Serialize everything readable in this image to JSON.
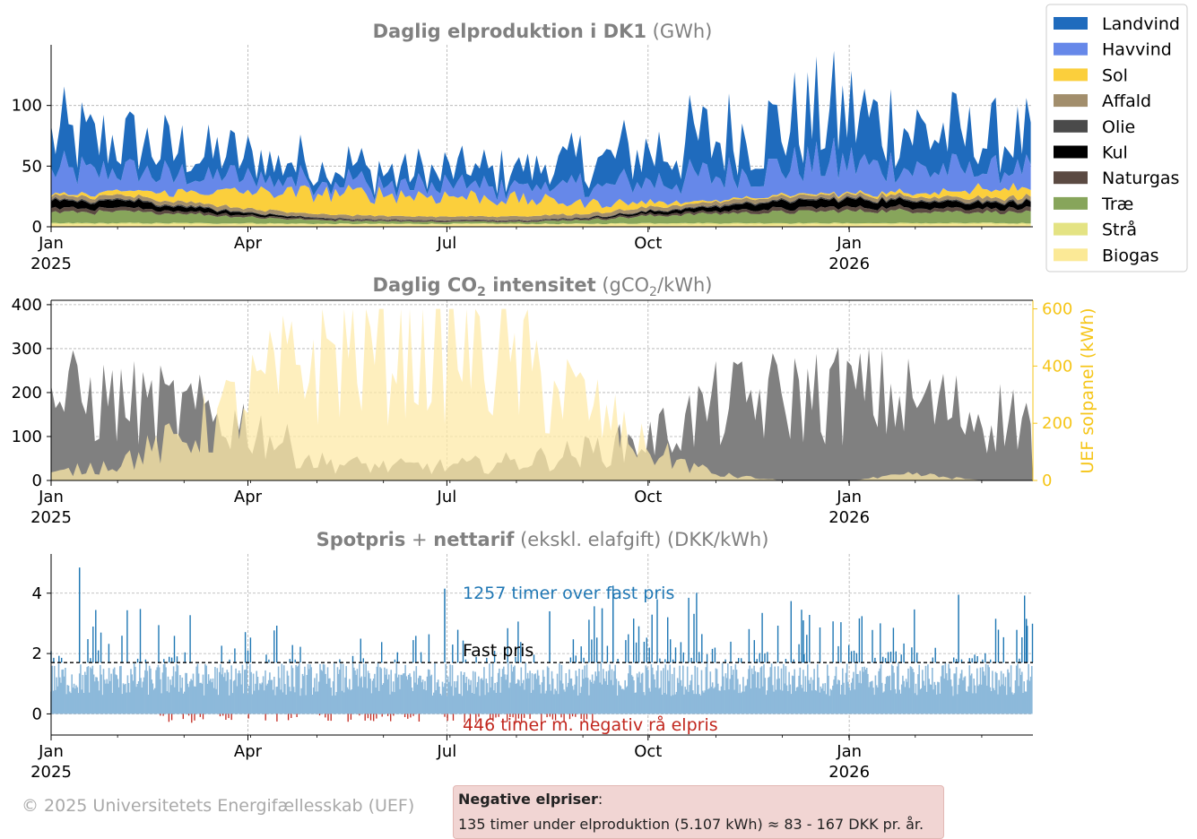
{
  "chart_data": [
    {
      "type": "area",
      "title_bold": "Daglig elproduktion i DK1",
      "title_unit": "(GWh)",
      "xlabel": "",
      "ylabel": "",
      "ylim": [
        0,
        150
      ],
      "yticks": [
        0,
        50,
        100
      ],
      "xticks": [
        {
          "label": "Jan",
          "sub": "2025",
          "day": 0
        },
        {
          "label": "Apr",
          "sub": "",
          "day": 90
        },
        {
          "label": "Jul",
          "sub": "",
          "day": 181
        },
        {
          "label": "Oct",
          "sub": "",
          "day": 273
        },
        {
          "label": "Jan",
          "sub": "2026",
          "day": 365
        }
      ],
      "x_range_days": [
        0,
        449
      ],
      "grid": true,
      "legend_position": "outside-top-right",
      "series": [
        {
          "name": "Biogas",
          "color": "#fbe996",
          "monthly_avg": [
            2,
            2,
            2,
            2,
            2,
            2,
            2,
            2,
            2,
            2,
            2,
            2,
            2,
            2,
            2
          ]
        },
        {
          "name": "Strå",
          "color": "#e4e383",
          "monthly_avg": [
            1,
            1,
            1,
            1,
            0.5,
            0.5,
            0.5,
            0.5,
            0.5,
            1,
            1,
            1,
            1,
            1,
            1
          ]
        },
        {
          "name": "Træ",
          "color": "#87a55b",
          "monthly_avg": [
            9,
            9,
            8,
            5,
            3,
            2,
            1.5,
            1.5,
            3,
            6,
            8,
            9,
            10,
            10,
            9
          ]
        },
        {
          "name": "Naturgas",
          "color": "#5b4a42",
          "monthly_avg": [
            3,
            3,
            2,
            1.5,
            1,
            1,
            1,
            1,
            1,
            1.5,
            2,
            3,
            3,
            3,
            3
          ]
        },
        {
          "name": "Kul",
          "color": "#000000",
          "monthly_avg": [
            6,
            6,
            4,
            2,
            0.5,
            0,
            0,
            0,
            0.5,
            2,
            4,
            6,
            6,
            6,
            5
          ]
        },
        {
          "name": "Olie",
          "color": "#4a4a4a",
          "monthly_avg": [
            1,
            1,
            1,
            0.5,
            0.5,
            0.5,
            0.5,
            0.5,
            0.5,
            0.5,
            1,
            1,
            1,
            1,
            1
          ]
        },
        {
          "name": "Affald",
          "color": "#a28e6c",
          "monthly_avg": [
            3,
            3,
            3,
            3,
            3,
            3,
            3,
            3,
            3,
            3,
            3,
            3,
            3,
            3,
            3
          ]
        },
        {
          "name": "Sol",
          "color": "#fbcf3c",
          "monthly_avg": [
            1,
            3,
            8,
            14,
            17,
            18,
            17,
            14,
            9,
            4,
            1,
            1,
            1,
            3,
            8
          ]
        },
        {
          "name": "Havvind",
          "color": "#6688e9",
          "monthly_avg": [
            18,
            16,
            13,
            11,
            9,
            8,
            9,
            10,
            13,
            17,
            20,
            22,
            24,
            20,
            15
          ]
        },
        {
          "name": "Landvind",
          "color": "#1f6bbd",
          "monthly_avg": [
            28,
            24,
            20,
            16,
            13,
            11,
            12,
            14,
            19,
            25,
            30,
            33,
            40,
            32,
            25
          ]
        }
      ],
      "legend": [
        "Landvind",
        "Havvind",
        "Sol",
        "Affald",
        "Olie",
        "Kul",
        "Naturgas",
        "Træ",
        "Strå",
        "Biogas"
      ]
    },
    {
      "type": "area",
      "title_bold": "Daglig CO",
      "title_sub": "2",
      "title_bold2": " intensitet",
      "title_unit": "(gCO",
      "title_unit_sub": "2",
      "title_unit_end": "/kWh)",
      "ylim": [
        0,
        410
      ],
      "yticks": [
        0,
        100,
        200,
        300,
        400
      ],
      "y2label": "UEF solpanel (kWh)",
      "y2lim": [
        0,
        630
      ],
      "y2ticks": [
        0,
        200,
        400,
        600
      ],
      "xticks": [
        {
          "label": "Jan",
          "sub": "2025",
          "day": 0
        },
        {
          "label": "Apr",
          "sub": "",
          "day": 90
        },
        {
          "label": "Jul",
          "sub": "",
          "day": 181
        },
        {
          "label": "Oct",
          "sub": "",
          "day": 273
        },
        {
          "label": "Jan",
          "sub": "2026",
          "day": 365
        }
      ],
      "series": [
        {
          "name": "CO2 intensitet",
          "color": "#808080",
          "monthly_avg": [
            180,
            170,
            150,
            120,
            40,
            30,
            30,
            40,
            60,
            90,
            160,
            180,
            190,
            170,
            140
          ]
        },
        {
          "name": "UEF solpanel",
          "color": "#fde9a8",
          "axis": "right",
          "monthly_avg": [
            20,
            60,
            140,
            280,
            420,
            470,
            480,
            380,
            260,
            100,
            20,
            0,
            0,
            20,
            0
          ]
        }
      ]
    },
    {
      "type": "bar",
      "title_bold": "Spotpris",
      "title_plus": " + ",
      "title_bold2": "nettarif",
      "title_unit": "(ekskl. elafgift) (DKK/kWh)",
      "ylim": [
        -0.7,
        5.3
      ],
      "yticks": [
        0,
        2,
        4
      ],
      "fixed_price": 1.7,
      "xticks": [
        {
          "label": "Jan",
          "sub": "2025",
          "day": 0
        },
        {
          "label": "Apr",
          "sub": "",
          "day": 90
        },
        {
          "label": "Jul",
          "sub": "",
          "day": 181
        },
        {
          "label": "Oct",
          "sub": "",
          "day": 273
        },
        {
          "label": "Jan",
          "sub": "2026",
          "day": 365
        }
      ],
      "colors": {
        "over": "#1f77b4",
        "under": "#8db9da",
        "negative": "#c1271e"
      },
      "annotations": {
        "over": "1257 timer over fast pris",
        "fixed": "Fast pris",
        "negative": "446 timer m. negativ rå elpris"
      }
    }
  ],
  "note": {
    "title": "Negative elpriser",
    "title_suffix": ":",
    "line": "135 timer under elproduktion (5.107 kWh) ≈ 83 - 167 DKK pr. år."
  },
  "copyright": "© 2025 Universitetets Energifællesskab (UEF)"
}
